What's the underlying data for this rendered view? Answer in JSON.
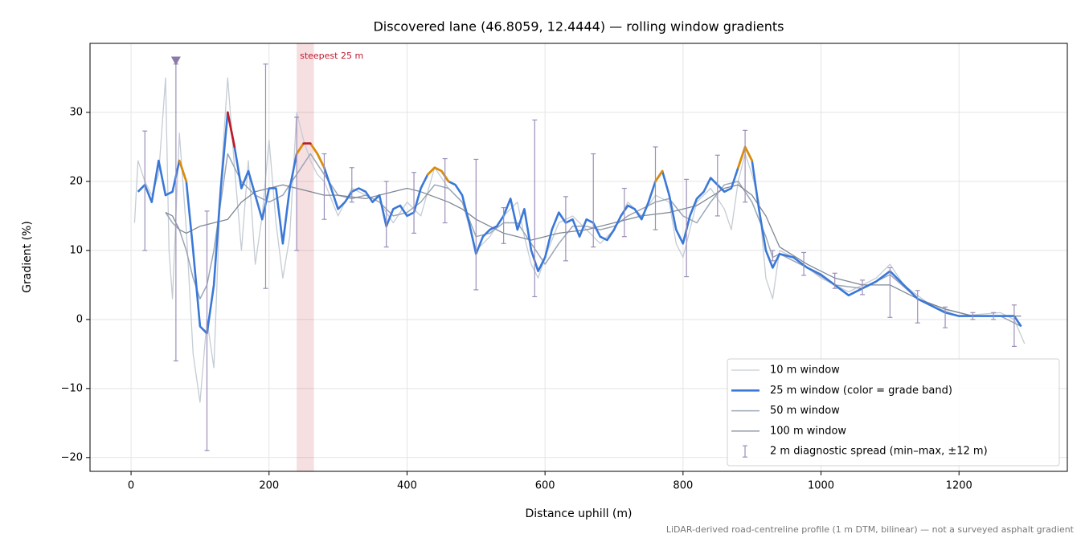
{
  "chart_data": {
    "type": "line",
    "title": "Discovered lane (46.8059, 12.4444) — rolling window gradients",
    "x_label": "Distance uphill (m)",
    "y_label": "Gradient (%)",
    "footnote": "LiDAR-derived road-centreline profile (1 m DTM, bilinear) — not a surveyed asphalt gradient",
    "xlim": [
      -59.5,
      1357
    ],
    "ylim": [
      -22,
      40
    ],
    "xticks": [
      0,
      200,
      400,
      600,
      800,
      1000,
      1200
    ],
    "yticks": [
      {
        "value": -20,
        "label": "−20"
      },
      {
        "value": -10,
        "label": "−10"
      },
      0,
      10,
      20,
      30
    ],
    "grid": true,
    "legend": "lower right",
    "highlight": {
      "x0": 240,
      "x1": 265,
      "label": "steepest 25 m",
      "color": "#c0192c"
    },
    "marker": {
      "x": 65,
      "y": 37.5,
      "color": "#8a7aa8"
    },
    "series": [
      {
        "name": "10 m window",
        "color": "#c4ccd4",
        "width": 1.3,
        "x": [
          5,
          10,
          20,
          30,
          40,
          50,
          55,
          60,
          70,
          80,
          90,
          100,
          110,
          120,
          130,
          140,
          150,
          160,
          170,
          180,
          190,
          200,
          210,
          220,
          230,
          240,
          250,
          260,
          270,
          280,
          300,
          320,
          340,
          360,
          380,
          400,
          420,
          440,
          460,
          480,
          500,
          520,
          540,
          560,
          570,
          580,
          590,
          600,
          620,
          640,
          660,
          680,
          700,
          720,
          740,
          760,
          780,
          790,
          800,
          820,
          840,
          860,
          870,
          880,
          890,
          900,
          910,
          920,
          930,
          940,
          960,
          1000,
          1040,
          1080,
          1100,
          1120,
          1160,
          1200,
          1260,
          1280,
          1295
        ],
        "values": [
          14,
          23,
          20,
          18,
          21,
          35,
          10,
          3,
          27,
          13,
          -5,
          -12,
          0,
          -7,
          20,
          35,
          22,
          10,
          23,
          8,
          15,
          26,
          14,
          6,
          12,
          30,
          26,
          23,
          21,
          20,
          15,
          19,
          18,
          17,
          14,
          17,
          15,
          22,
          19,
          17,
          10,
          12,
          15,
          17,
          12,
          8,
          6,
          9,
          14,
          15,
          13,
          11,
          13,
          17,
          15,
          18,
          17,
          11,
          9,
          17,
          19,
          16,
          13,
          20,
          24,
          21,
          17,
          6,
          3,
          10,
          9,
          6,
          4,
          6,
          8,
          5,
          2,
          0.5,
          1,
          0,
          -3.5
        ]
      },
      {
        "name": "50 m window",
        "color": "#9aa6b4",
        "width": 1.5,
        "x": [
          50,
          60,
          70,
          80,
          90,
          100,
          110,
          120,
          130,
          140,
          150,
          160,
          180,
          200,
          220,
          240,
          260,
          280,
          300,
          320,
          340,
          360,
          380,
          400,
          420,
          440,
          460,
          480,
          500,
          520,
          540,
          560,
          580,
          600,
          620,
          640,
          660,
          680,
          700,
          720,
          740,
          760,
          780,
          800,
          820,
          840,
          860,
          880,
          900,
          920,
          930,
          940,
          980,
          1020,
          1060,
          1100,
          1140,
          1180,
          1220,
          1260,
          1290
        ],
        "values": [
          15.5,
          14,
          13,
          10,
          6,
          3,
          5,
          10,
          17,
          24,
          22,
          20,
          18,
          17,
          18,
          21,
          24,
          21,
          18,
          17.5,
          18,
          17,
          15,
          15.5,
          17,
          19.5,
          19,
          17,
          12,
          12.5,
          14,
          14,
          11,
          8,
          11,
          13.5,
          13.5,
          13,
          13.5,
          15,
          16,
          17,
          17.5,
          15,
          14,
          17,
          19.5,
          20,
          17,
          12,
          9,
          9.5,
          7.5,
          5,
          4.5,
          6.5,
          3,
          1.5,
          0.5,
          0.5,
          -1
        ]
      },
      {
        "name": "100 m window",
        "color": "#7d8794",
        "width": 1.3,
        "x": [
          50,
          60,
          70,
          80,
          100,
          120,
          140,
          160,
          180,
          200,
          220,
          240,
          260,
          280,
          300,
          340,
          380,
          400,
          420,
          460,
          480,
          500,
          540,
          580,
          620,
          660,
          700,
          740,
          780,
          820,
          860,
          880,
          900,
          920,
          940,
          980,
          1020,
          1060,
          1100,
          1140,
          1180,
          1220,
          1260,
          1290
        ],
        "values": [
          15.5,
          15,
          13,
          12.5,
          13.5,
          14,
          14.5,
          17,
          18.5,
          19,
          19.5,
          19,
          18.5,
          18,
          18,
          17.5,
          18.5,
          19,
          18.5,
          17,
          16,
          14.5,
          12.5,
          11.5,
          12.5,
          13,
          14,
          15,
          15.5,
          16.5,
          19,
          19.5,
          18,
          15,
          10.5,
          8,
          6,
          5,
          5,
          3,
          1.5,
          0.5,
          0.5,
          0.5
        ]
      },
      {
        "name": "25 m window (color = grade band)",
        "color": "#3a78d8",
        "width": 2.6,
        "grade_bands": [
          {
            "min": 20,
            "color": "#e08c00"
          },
          {
            "min": 25,
            "color": "#c0192c"
          }
        ],
        "x": [
          10,
          20,
          30,
          40,
          50,
          60,
          70,
          80,
          90,
          100,
          110,
          120,
          130,
          140,
          150,
          160,
          170,
          180,
          190,
          200,
          210,
          220,
          230,
          240,
          250,
          260,
          270,
          280,
          290,
          300,
          310,
          320,
          330,
          340,
          350,
          360,
          370,
          380,
          390,
          400,
          410,
          420,
          430,
          440,
          450,
          460,
          470,
          480,
          490,
          500,
          510,
          520,
          530,
          540,
          550,
          560,
          570,
          580,
          590,
          600,
          610,
          620,
          630,
          640,
          650,
          660,
          670,
          680,
          690,
          700,
          710,
          720,
          730,
          740,
          750,
          760,
          770,
          780,
          790,
          800,
          810,
          820,
          830,
          840,
          850,
          860,
          870,
          880,
          890,
          900,
          910,
          920,
          930,
          940,
          960,
          980,
          1000,
          1020,
          1040,
          1060,
          1080,
          1100,
          1120,
          1140,
          1160,
          1180,
          1200,
          1220,
          1240,
          1260,
          1280,
          1290
        ],
        "values": [
          18.5,
          19.5,
          17,
          23,
          18,
          18.5,
          23,
          20,
          10,
          -1,
          -2,
          5,
          19,
          30,
          25,
          19,
          21.5,
          18,
          14.5,
          19,
          19,
          11,
          19,
          24,
          25.5,
          25.5,
          24,
          22,
          19,
          16,
          17,
          18.5,
          19,
          18.5,
          17,
          18,
          13.5,
          16,
          16.5,
          15,
          15.5,
          19,
          21,
          22,
          21.5,
          20,
          19.5,
          18,
          14,
          9.5,
          12,
          13,
          13.5,
          15,
          17.5,
          13,
          16,
          10,
          7,
          9,
          13,
          15.5,
          14,
          14.5,
          12,
          14.5,
          14,
          12,
          11.5,
          13,
          15,
          16.5,
          16,
          14.5,
          17,
          20,
          21.5,
          18,
          13,
          11,
          15,
          17.5,
          18.5,
          20.5,
          19.5,
          18.5,
          19,
          22,
          25,
          23,
          16,
          10,
          7.5,
          9.5,
          9,
          7.5,
          6.5,
          5,
          3.5,
          4.5,
          5.5,
          7,
          5,
          3,
          2,
          1,
          0.5,
          0.5,
          0.5,
          0.5,
          0.5,
          -1
        ]
      }
    ],
    "spread": {
      "name": "2 m diagnostic spread (min–max, ±12 m)",
      "color": "#9c8fb8",
      "x": [
        20,
        65,
        110,
        195,
        240,
        280,
        320,
        370,
        410,
        455,
        500,
        540,
        585,
        630,
        670,
        715,
        760,
        805,
        850,
        890,
        930,
        975,
        1020,
        1060,
        1100,
        1140,
        1180,
        1220,
        1250,
        1280
      ],
      "low": [
        10,
        -6,
        -19,
        4.5,
        10,
        14.5,
        17,
        10.5,
        12.5,
        14,
        4.3,
        11,
        3.3,
        8.5,
        10.5,
        12,
        13,
        6.2,
        15,
        17,
        8.5,
        6.4,
        4.5,
        3.6,
        0.3,
        -0.5,
        -1.2,
        0,
        0,
        -3.9
      ],
      "high": [
        27.3,
        37,
        15.7,
        37,
        29.3,
        24,
        22,
        20,
        21.3,
        23.3,
        23.2,
        16.2,
        28.9,
        17.8,
        24,
        19,
        25,
        20.3,
        23.8,
        27.4,
        10,
        9.7,
        6.7,
        5.7,
        7.5,
        4.2,
        1.8,
        1,
        1,
        2.1
      ]
    }
  }
}
